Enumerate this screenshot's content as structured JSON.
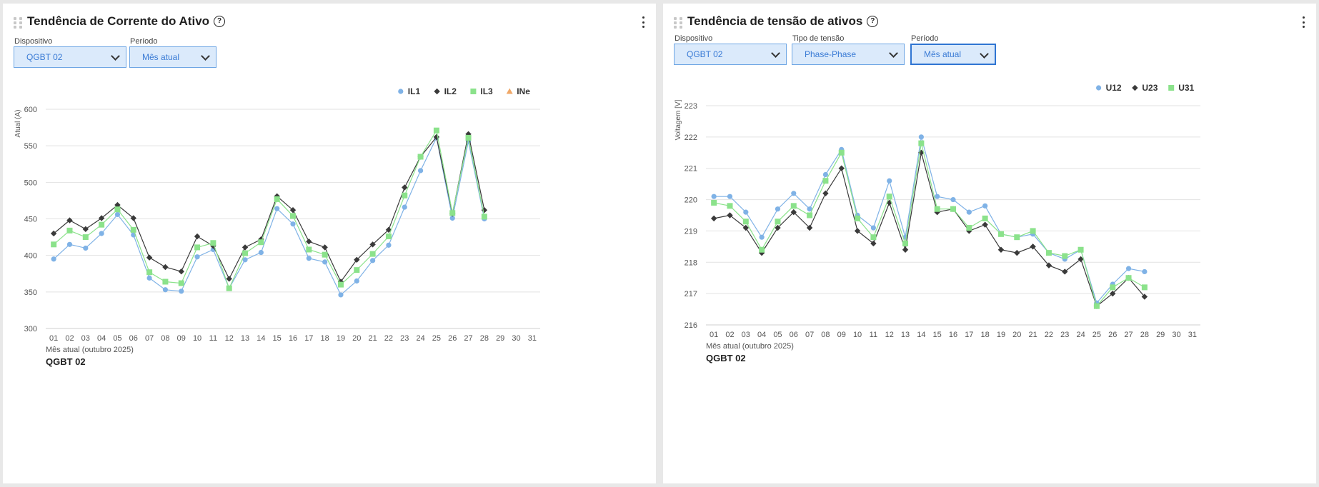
{
  "left_panel": {
    "title": "Tendência de Corrente do Ativo",
    "device_label": "Dispositivo",
    "device_value": "QGBT 02",
    "period_label": "Período",
    "period_value": "Mês atual",
    "footer_name": "QGBT 02"
  },
  "right_panel": {
    "title": "Tendência de tensão de ativos",
    "device_label": "Dispositivo",
    "device_value": "QGBT 02",
    "voltage_type_label": "Tipo de tensão",
    "voltage_type_value": "Phase-Phase",
    "period_label": "Período",
    "period_value": "Mês atual",
    "footer_name": "QGBT 02"
  },
  "colors": {
    "series_blue": "#7fb2e6",
    "series_dark": "#3a3a3a",
    "series_green": "#8be28b",
    "series_orange": "#f0a868",
    "grid": "#e2e2e2"
  },
  "chart_data": [
    {
      "type": "line",
      "title": "Tendência de Corrente do Ativo",
      "xlabel": "Mês atual (outubro 2025)",
      "ylabel": "Atual (A)",
      "ylim": [
        300,
        600
      ],
      "yticks": [
        300,
        350,
        400,
        450,
        500,
        550,
        600
      ],
      "categories": [
        "01",
        "02",
        "03",
        "04",
        "05",
        "06",
        "07",
        "08",
        "09",
        "10",
        "11",
        "12",
        "13",
        "14",
        "15",
        "16",
        "17",
        "18",
        "19",
        "20",
        "21",
        "22",
        "23",
        "24",
        "25",
        "26",
        "27",
        "28",
        "29",
        "30",
        "31"
      ],
      "grid": true,
      "legend": "top-right",
      "series": [
        {
          "name": "IL1",
          "marker": "circle",
          "color": "#7fb2e6",
          "values": [
            395,
            415,
            410,
            430,
            456,
            428,
            369,
            353,
            351,
            398,
            408,
            355,
            394,
            404,
            464,
            443,
            396,
            391,
            346,
            365,
            393,
            414,
            466,
            516,
            561,
            451,
            556,
            450,
            null,
            null,
            null
          ]
        },
        {
          "name": "IL2",
          "marker": "diamond",
          "color": "#3a3a3a",
          "values": [
            430,
            448,
            436,
            451,
            469,
            451,
            397,
            384,
            378,
            426,
            413,
            368,
            411,
            422,
            481,
            462,
            419,
            411,
            364,
            394,
            415,
            435,
            493,
            535,
            562,
            457,
            566,
            462,
            null,
            null,
            null
          ]
        },
        {
          "name": "IL3",
          "marker": "square",
          "color": "#8be28b",
          "values": [
            415,
            434,
            425,
            442,
            463,
            435,
            377,
            364,
            362,
            411,
            417,
            355,
            403,
            418,
            477,
            454,
            408,
            401,
            360,
            380,
            402,
            426,
            482,
            535,
            571,
            458,
            561,
            453,
            null,
            null,
            null
          ]
        },
        {
          "name": "INe",
          "marker": "triangle",
          "color": "#f0a868",
          "values": [
            null,
            null,
            null,
            null,
            null,
            null,
            null,
            null,
            null,
            null,
            null,
            null,
            null,
            null,
            null,
            null,
            null,
            null,
            null,
            null,
            null,
            null,
            null,
            null,
            null,
            null,
            null,
            null,
            null,
            null,
            null
          ]
        }
      ]
    },
    {
      "type": "line",
      "title": "Tendência de tensão de ativos",
      "xlabel": "Mês atual (outubro 2025)",
      "ylabel": "Voltagem [V]",
      "ylim": [
        216,
        223
      ],
      "yticks": [
        216,
        217,
        218,
        219,
        220,
        221,
        222,
        223
      ],
      "categories": [
        "01",
        "02",
        "03",
        "04",
        "05",
        "06",
        "07",
        "08",
        "09",
        "10",
        "11",
        "12",
        "13",
        "14",
        "15",
        "16",
        "17",
        "18",
        "19",
        "20",
        "21",
        "22",
        "23",
        "24",
        "25",
        "26",
        "27",
        "28",
        "29",
        "30",
        "31"
      ],
      "grid": true,
      "legend": "top-right",
      "series": [
        {
          "name": "U12",
          "marker": "circle",
          "color": "#7fb2e6",
          "values": [
            220.1,
            220.1,
            219.6,
            218.8,
            219.7,
            220.2,
            219.7,
            220.8,
            221.6,
            219.5,
            219.1,
            220.6,
            218.8,
            222.0,
            220.1,
            220.0,
            219.6,
            219.8,
            218.9,
            218.8,
            218.9,
            218.3,
            218.1,
            218.4,
            216.7,
            217.3,
            217.8,
            217.7,
            null,
            null,
            null
          ]
        },
        {
          "name": "U23",
          "marker": "diamond",
          "color": "#3a3a3a",
          "values": [
            219.4,
            219.5,
            219.1,
            218.3,
            219.1,
            219.6,
            219.1,
            220.2,
            221.0,
            219.0,
            218.6,
            219.9,
            218.4,
            221.5,
            219.6,
            219.7,
            219.0,
            219.2,
            218.4,
            218.3,
            218.5,
            217.9,
            217.7,
            218.1,
            216.6,
            217.0,
            217.5,
            216.9,
            null,
            null,
            null
          ]
        },
        {
          "name": "U31",
          "marker": "square",
          "color": "#8be28b",
          "values": [
            219.9,
            219.8,
            219.3,
            218.4,
            219.3,
            219.8,
            219.5,
            220.6,
            221.5,
            219.4,
            218.8,
            220.1,
            218.6,
            221.8,
            219.7,
            219.7,
            219.1,
            219.4,
            218.9,
            218.8,
            219.0,
            218.3,
            218.2,
            218.4,
            216.6,
            217.2,
            217.5,
            217.2,
            null,
            null,
            null
          ]
        }
      ]
    }
  ]
}
